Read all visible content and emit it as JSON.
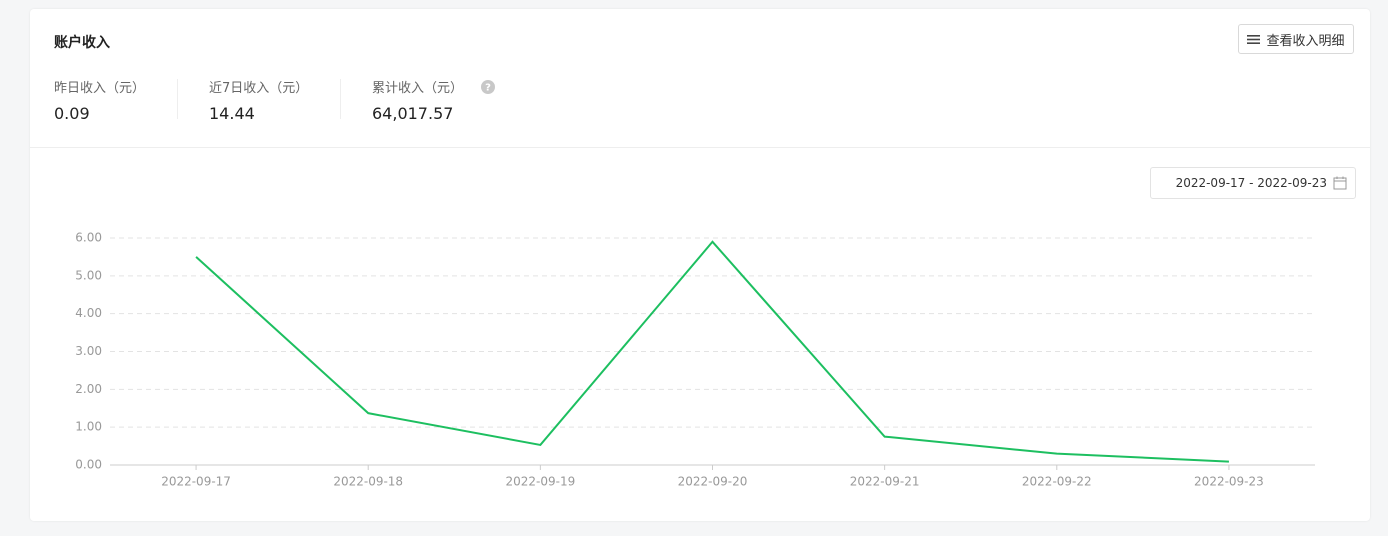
{
  "header": {
    "title": "账户收入",
    "button": "查看收入明细"
  },
  "stats": [
    {
      "label": "昨日收入（元）",
      "value": "0.09"
    },
    {
      "label": "近7日收入（元）",
      "value": "14.44"
    },
    {
      "label": "累计收入（元）",
      "value": "64,017.57"
    }
  ],
  "date_range": "2022-09-17 - 2022-09-23",
  "chart_data": {
    "type": "line",
    "categories": [
      "2022-09-17",
      "2022-09-18",
      "2022-09-19",
      "2022-09-20",
      "2022-09-21",
      "2022-09-22",
      "2022-09-23"
    ],
    "values": [
      5.5,
      1.37,
      0.53,
      5.9,
      0.75,
      0.3,
      0.09
    ],
    "color": "#1dbf60",
    "ylim": [
      0,
      6
    ],
    "yticks": [
      {
        "value": 0,
        "label": "0.00"
      },
      {
        "value": 1,
        "label": "1.00"
      },
      {
        "value": 2,
        "label": "2.00"
      },
      {
        "value": 3,
        "label": "3.00"
      },
      {
        "value": 4,
        "label": "4.00"
      },
      {
        "value": 5,
        "label": "5.00"
      },
      {
        "value": 6,
        "label": "6.00"
      }
    ],
    "grid": true
  }
}
